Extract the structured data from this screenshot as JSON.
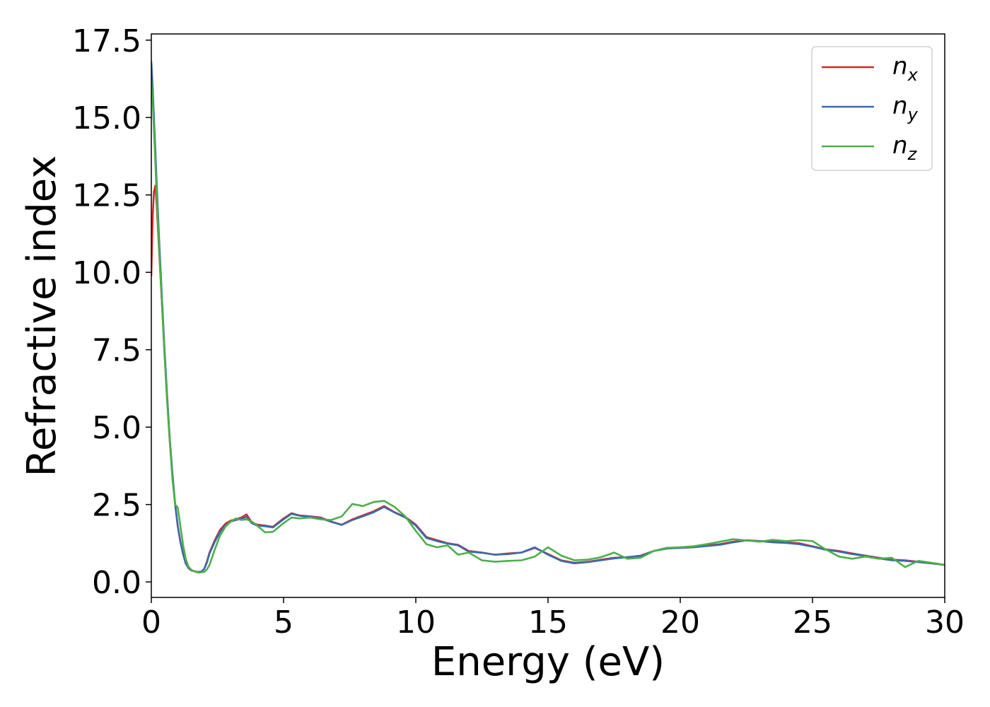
{
  "chart_data": {
    "type": "line",
    "title": "",
    "xlabel": "Energy (eV)",
    "ylabel": "Refractive index",
    "xlim": [
      0,
      30
    ],
    "ylim": [
      -0.5,
      17.7
    ],
    "xticks": [
      0,
      5,
      10,
      15,
      20,
      25,
      30
    ],
    "xtick_labels": [
      "0",
      "5",
      "10",
      "15",
      "20",
      "25",
      "30"
    ],
    "yticks": [
      0.0,
      2.5,
      5.0,
      7.5,
      10.0,
      12.5,
      15.0,
      17.5
    ],
    "ytick_labels": [
      "0.0",
      "2.5",
      "5.0",
      "7.5",
      "10.0",
      "12.5",
      "15.0",
      "17.5"
    ],
    "grid": false,
    "legend_position": "top-right",
    "series": [
      {
        "name": "n",
        "subscript": "x",
        "color": "#d62728",
        "x": [
          0.0,
          0.05,
          0.1,
          0.15,
          0.2,
          0.3,
          0.4,
          0.5,
          0.6,
          0.7,
          0.8,
          0.9,
          1.0,
          1.1,
          1.2,
          1.3,
          1.4,
          1.5,
          1.6,
          1.7,
          1.8,
          1.9,
          2.0,
          2.1,
          2.2,
          2.4,
          2.6,
          2.8,
          3.0,
          3.2,
          3.4,
          3.6,
          3.8,
          4.0,
          4.3,
          4.6,
          5.0,
          5.3,
          5.6,
          6.0,
          6.4,
          6.8,
          7.2,
          7.6,
          8.0,
          8.4,
          8.8,
          9.2,
          9.6,
          10.0,
          10.4,
          10.8,
          11.2,
          11.6,
          12.0,
          12.5,
          13.0,
          13.5,
          14.0,
          14.5,
          15.0,
          15.5,
          16.0,
          16.5,
          17.0,
          17.5,
          18.0,
          18.5,
          19.0,
          19.5,
          20.0,
          20.5,
          21.0,
          21.5,
          22.0,
          22.5,
          23.0,
          23.5,
          24.0,
          24.5,
          25.0,
          25.5,
          26.0,
          26.5,
          27.0,
          27.5,
          28.0,
          28.5,
          29.0,
          29.5,
          30.0
        ],
        "y": [
          9.9,
          11.8,
          12.6,
          12.8,
          12.2,
          10.6,
          9.0,
          7.4,
          5.9,
          4.5,
          3.4,
          2.5,
          1.8,
          1.3,
          0.9,
          0.6,
          0.45,
          0.38,
          0.35,
          0.33,
          0.32,
          0.34,
          0.42,
          0.65,
          0.95,
          1.35,
          1.68,
          1.88,
          1.98,
          2.03,
          2.08,
          2.18,
          1.92,
          1.85,
          1.82,
          1.78,
          2.05,
          2.22,
          2.15,
          2.12,
          2.08,
          1.95,
          1.85,
          2.02,
          2.15,
          2.28,
          2.45,
          2.25,
          2.1,
          1.85,
          1.45,
          1.35,
          1.25,
          1.2,
          1.0,
          0.95,
          0.88,
          0.92,
          0.95,
          1.1,
          0.9,
          0.7,
          0.62,
          0.65,
          0.72,
          0.78,
          0.8,
          0.85,
          1.0,
          1.1,
          1.1,
          1.12,
          1.18,
          1.22,
          1.3,
          1.35,
          1.32,
          1.3,
          1.28,
          1.25,
          1.15,
          1.05,
          1.0,
          0.92,
          0.85,
          0.78,
          0.72,
          0.7,
          0.65,
          0.6,
          0.55
        ]
      },
      {
        "name": "n",
        "subscript": "y",
        "color": "#3a6bab",
        "x": [
          0.0,
          0.05,
          0.1,
          0.15,
          0.2,
          0.3,
          0.4,
          0.5,
          0.6,
          0.7,
          0.8,
          0.9,
          1.0,
          1.1,
          1.2,
          1.3,
          1.4,
          1.5,
          1.6,
          1.7,
          1.8,
          1.9,
          2.0,
          2.1,
          2.2,
          2.4,
          2.6,
          2.8,
          3.0,
          3.2,
          3.4,
          3.6,
          3.8,
          4.0,
          4.3,
          4.6,
          5.0,
          5.3,
          5.6,
          6.0,
          6.4,
          6.8,
          7.2,
          7.6,
          8.0,
          8.4,
          8.8,
          9.2,
          9.6,
          10.0,
          10.4,
          10.8,
          11.2,
          11.6,
          12.0,
          12.5,
          13.0,
          13.5,
          14.0,
          14.5,
          15.0,
          15.5,
          16.0,
          16.5,
          17.0,
          17.5,
          18.0,
          18.5,
          19.0,
          19.5,
          20.0,
          20.5,
          21.0,
          21.5,
          22.0,
          22.5,
          23.0,
          23.5,
          24.0,
          24.5,
          25.0,
          25.5,
          26.0,
          26.5,
          27.0,
          27.5,
          28.0,
          28.5,
          29.0,
          29.5,
          30.0
        ],
        "y": [
          16.8,
          16.0,
          15.0,
          14.0,
          12.9,
          11.0,
          9.2,
          7.5,
          6.0,
          4.6,
          3.5,
          2.5,
          1.8,
          1.3,
          0.9,
          0.6,
          0.45,
          0.38,
          0.35,
          0.33,
          0.32,
          0.34,
          0.42,
          0.62,
          0.92,
          1.3,
          1.62,
          1.82,
          1.95,
          2.0,
          2.04,
          2.1,
          1.9,
          1.82,
          1.8,
          1.76,
          2.02,
          2.2,
          2.14,
          2.1,
          2.06,
          1.94,
          1.84,
          2.0,
          2.12,
          2.25,
          2.42,
          2.24,
          2.08,
          1.82,
          1.42,
          1.32,
          1.24,
          1.18,
          0.98,
          0.94,
          0.88,
          0.9,
          0.95,
          1.12,
          0.88,
          0.68,
          0.6,
          0.64,
          0.7,
          0.76,
          0.8,
          0.84,
          1.0,
          1.08,
          1.1,
          1.12,
          1.16,
          1.2,
          1.28,
          1.34,
          1.32,
          1.28,
          1.26,
          1.22,
          1.14,
          1.04,
          0.98,
          0.9,
          0.84,
          0.76,
          0.7,
          0.68,
          0.64,
          0.6,
          0.55
        ]
      },
      {
        "name": "n",
        "subscript": "z",
        "color": "#4daf4a",
        "x": [
          0.0,
          0.05,
          0.1,
          0.15,
          0.2,
          0.3,
          0.4,
          0.5,
          0.6,
          0.7,
          0.8,
          0.9,
          1.0,
          1.1,
          1.2,
          1.3,
          1.4,
          1.5,
          1.6,
          1.7,
          1.8,
          1.9,
          2.0,
          2.1,
          2.2,
          2.4,
          2.6,
          2.8,
          3.0,
          3.2,
          3.4,
          3.6,
          3.8,
          4.0,
          4.3,
          4.6,
          5.0,
          5.3,
          5.6,
          6.0,
          6.4,
          6.8,
          7.2,
          7.6,
          8.0,
          8.4,
          8.8,
          9.2,
          9.6,
          10.0,
          10.4,
          10.8,
          11.2,
          11.6,
          12.0,
          12.5,
          13.0,
          13.5,
          14.0,
          14.5,
          15.0,
          15.5,
          16.0,
          16.5,
          17.0,
          17.5,
          18.0,
          18.5,
          19.0,
          19.5,
          20.0,
          20.5,
          21.0,
          21.5,
          22.0,
          22.5,
          23.0,
          23.5,
          24.0,
          24.5,
          25.0,
          25.5,
          26.0,
          26.5,
          27.0,
          27.5,
          28.0,
          28.5,
          29.0,
          29.5,
          30.0
        ],
        "y": [
          16.2,
          15.6,
          14.6,
          13.6,
          12.5,
          10.7,
          9.0,
          7.3,
          5.8,
          4.5,
          3.3,
          2.5,
          2.4,
          1.8,
          1.2,
          0.75,
          0.5,
          0.4,
          0.35,
          0.32,
          0.3,
          0.31,
          0.33,
          0.4,
          0.55,
          1.05,
          1.5,
          1.78,
          1.95,
          2.05,
          2.0,
          2.02,
          1.95,
          1.82,
          1.6,
          1.62,
          1.9,
          2.08,
          2.05,
          2.08,
          2.02,
          2.0,
          2.12,
          2.52,
          2.45,
          2.58,
          2.62,
          2.42,
          2.12,
          1.65,
          1.22,
          1.12,
          1.18,
          0.88,
          0.95,
          0.7,
          0.65,
          0.68,
          0.7,
          0.82,
          1.12,
          0.85,
          0.7,
          0.72,
          0.8,
          0.95,
          0.75,
          0.78,
          1.0,
          1.1,
          1.12,
          1.15,
          1.22,
          1.3,
          1.38,
          1.34,
          1.3,
          1.36,
          1.32,
          1.35,
          1.32,
          1.05,
          0.82,
          0.75,
          0.82,
          0.75,
          0.78,
          0.48,
          0.68,
          0.62,
          0.55
        ]
      }
    ]
  }
}
